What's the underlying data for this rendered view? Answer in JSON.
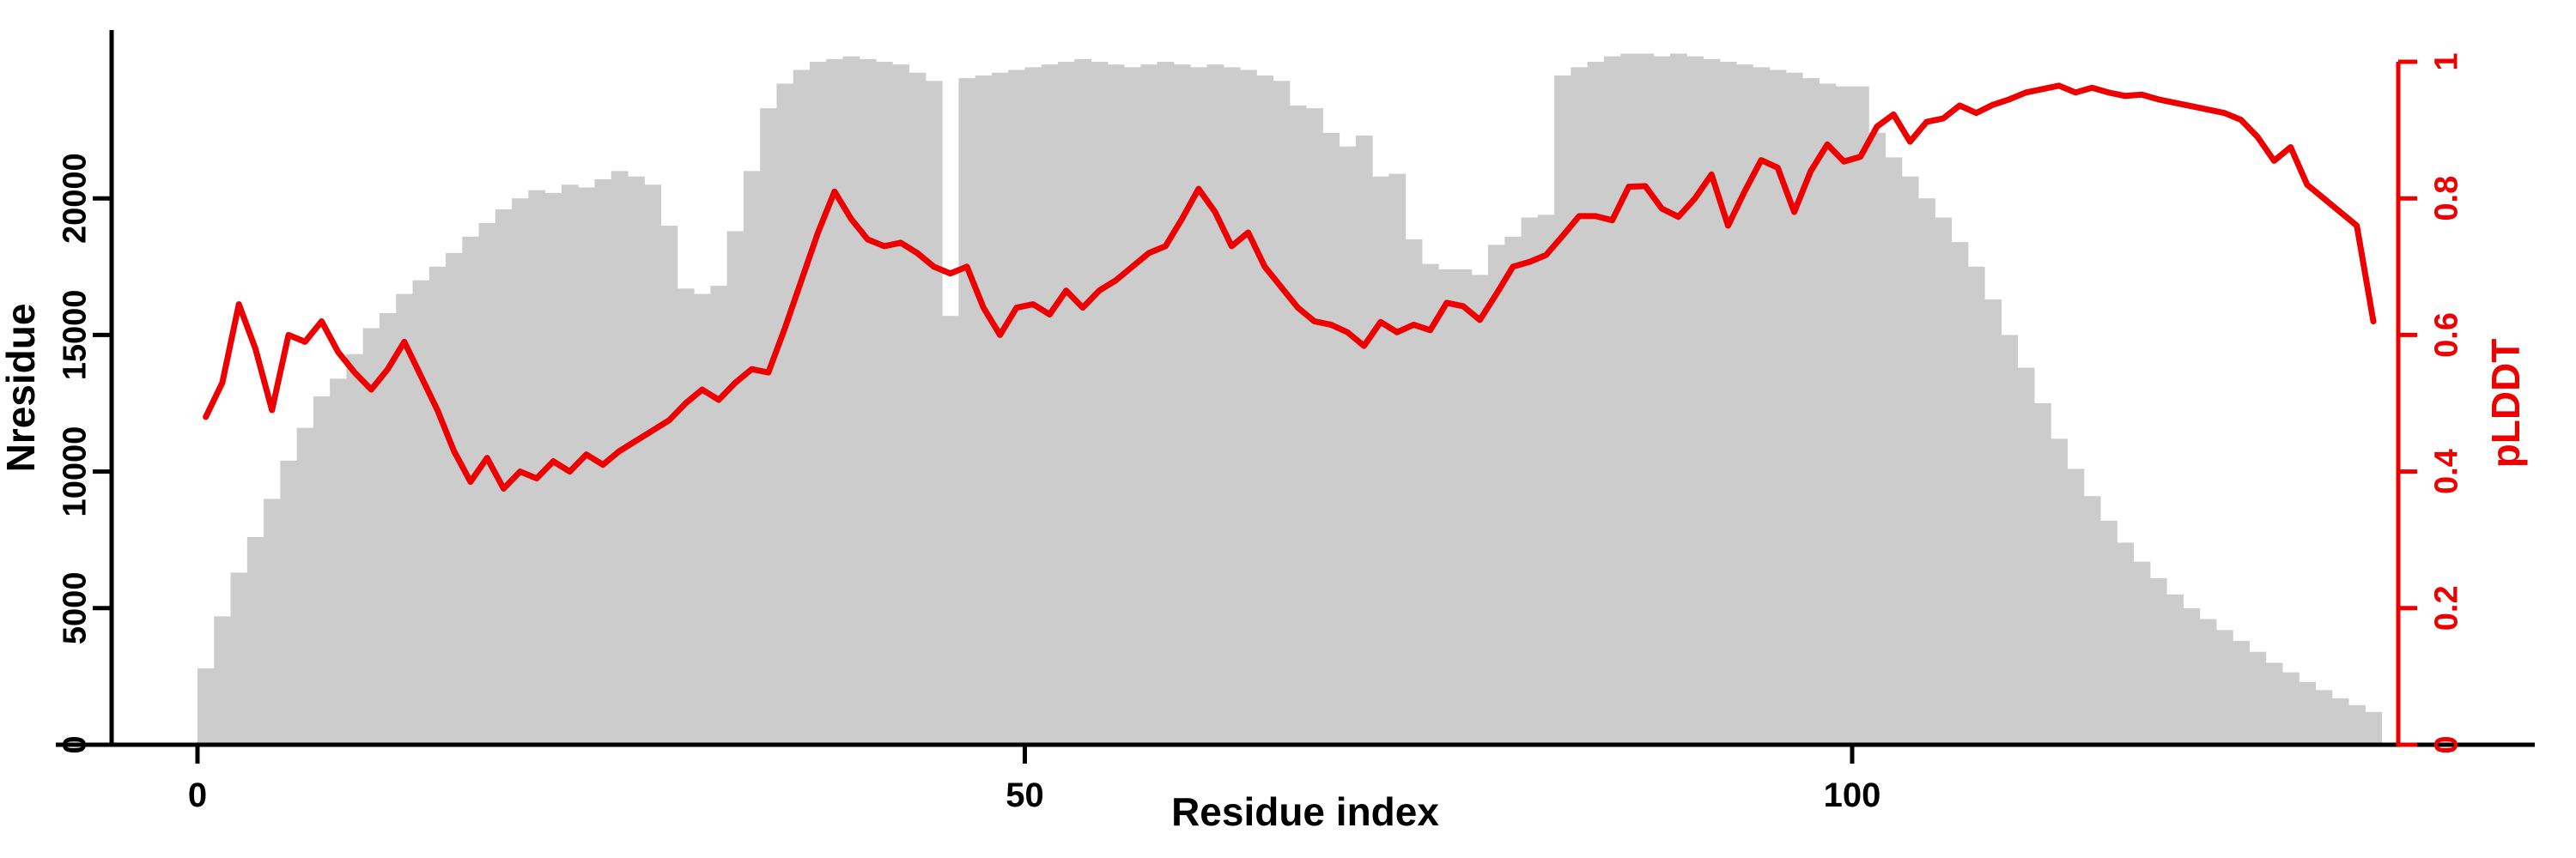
{
  "figure": {
    "xlabel": "Residue index",
    "ylabel_left": "Nresidue",
    "ylabel_right": "pLDDT"
  },
  "chart_data": {
    "type": "bar+line dual-axis (histogram of Nresidue with pLDDT line)",
    "xlabel": "Residue index",
    "x_axis": {
      "ticks": [
        0,
        50,
        100
      ],
      "tick_labels": [
        "0",
        "50",
        "100"
      ],
      "xlim": [
        0,
        142
      ]
    },
    "left_axis": {
      "label": "Nresidue",
      "color": "#000000",
      "ticks": [
        0,
        5000,
        10000,
        15000,
        20000
      ],
      "tick_labels": [
        "0",
        "5000",
        "10000",
        "15000",
        "20000"
      ],
      "ylim": [
        0,
        25000
      ]
    },
    "right_axis": {
      "label": "pLDDT",
      "color": "#ee0000",
      "ticks": [
        0,
        0.2,
        0.4,
        0.6,
        0.8,
        1
      ],
      "tick_labels": [
        "0",
        "0.2",
        "0.4",
        "0.6",
        "0.8",
        "1"
      ],
      "ylim": [
        0,
        1
      ]
    },
    "grid": false,
    "legend": "none",
    "bar_series": {
      "name": "Nresidue",
      "axis": "left",
      "color": "#cccccc",
      "x_start": 0,
      "values": [
        2800,
        4700,
        6300,
        7600,
        9000,
        10400,
        11600,
        12750,
        13400,
        14300,
        15250,
        15800,
        16500,
        17000,
        17500,
        18000,
        18600,
        19100,
        19600,
        20000,
        20300,
        20200,
        20500,
        20400,
        20700,
        21000,
        20800,
        20500,
        19000,
        16700,
        16500,
        16800,
        18800,
        21000,
        23300,
        24200,
        24700,
        25000,
        25100,
        25200,
        25100,
        25000,
        24900,
        24600,
        24300,
        15700,
        24400,
        24500,
        24600,
        24700,
        24800,
        24900,
        25000,
        25100,
        25000,
        24900,
        24800,
        24900,
        25000,
        24900,
        24800,
        24900,
        24800,
        24700,
        24500,
        24300,
        23400,
        23300,
        22400,
        21900,
        22300,
        20800,
        20900,
        18500,
        17600,
        17400,
        17400,
        17200,
        18300,
        18600,
        19300,
        19400,
        24500,
        24800,
        25000,
        25200,
        25300,
        25300,
        25200,
        25300,
        25200,
        25100,
        25000,
        24900,
        24800,
        24700,
        24600,
        24400,
        24200,
        24100,
        24100,
        22400,
        21500,
        20800,
        20000,
        19300,
        18400,
        17500,
        16300,
        15000,
        13800,
        12500,
        11200,
        10100,
        9100,
        8200,
        7400,
        6700,
        6100,
        5500,
        5000,
        4600,
        4200,
        3800,
        3400,
        3000,
        2650,
        2300,
        2000,
        1700,
        1450,
        1200
      ]
    },
    "line_series": {
      "name": "pLDDT",
      "axis": "right",
      "color": "#ee0000",
      "values": [
        0.48,
        0.53,
        0.645,
        0.58,
        0.49,
        0.6,
        0.59,
        0.62,
        0.575,
        0.545,
        0.52,
        0.55,
        0.59,
        0.54,
        0.49,
        0.43,
        0.385,
        0.42,
        0.375,
        0.4,
        0.39,
        0.415,
        0.4,
        0.425,
        0.41,
        0.43,
        0.445,
        0.46,
        0.475,
        0.5,
        0.52,
        0.505,
        0.53,
        0.55,
        0.545,
        0.61,
        0.68,
        0.75,
        0.81,
        0.77,
        0.74,
        0.73,
        0.735,
        0.72,
        0.7,
        0.69,
        0.7,
        0.64,
        0.6,
        0.64,
        0.645,
        0.63,
        0.665,
        0.64,
        0.665,
        0.68,
        0.7,
        0.72,
        0.73,
        0.77,
        0.814,
        0.78,
        0.73,
        0.75,
        0.7,
        0.67,
        0.64,
        0.62,
        0.615,
        0.604,
        0.584,
        0.619,
        0.604,
        0.615,
        0.607,
        0.647,
        0.642,
        0.622,
        0.66,
        0.7,
        0.707,
        0.717,
        0.745,
        0.774,
        0.774,
        0.768,
        0.817,
        0.818,
        0.785,
        0.773,
        0.8,
        0.835,
        0.76,
        0.81,
        0.856,
        0.845,
        0.78,
        0.84,
        0.879,
        0.854,
        0.861,
        0.905,
        0.923,
        0.883,
        0.912,
        0.917,
        0.936,
        0.925,
        0.937,
        0.945,
        0.955,
        0.96,
        0.965,
        0.955,
        0.962,
        0.955,
        0.95,
        0.952,
        0.945,
        0.94,
        0.935,
        0.93,
        0.925,
        0.915,
        0.89,
        0.855,
        0.875,
        0.82,
        0.8,
        0.78,
        0.76,
        0.62
      ]
    }
  }
}
